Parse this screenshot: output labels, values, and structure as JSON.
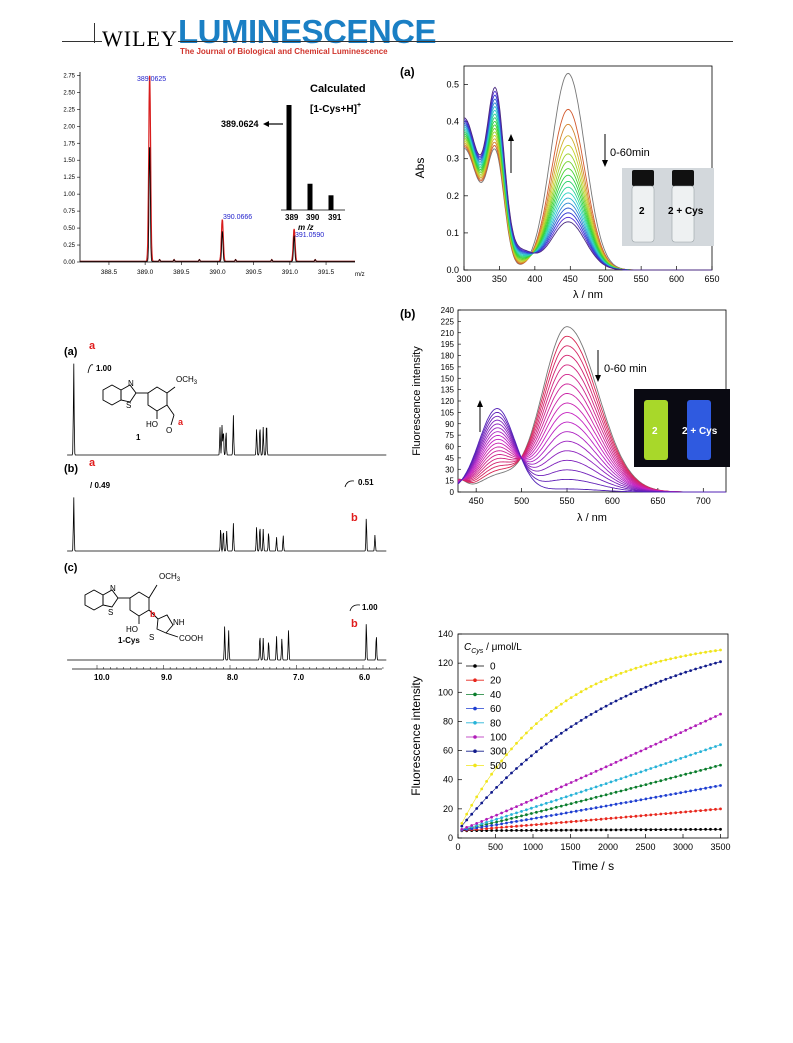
{
  "header": {
    "publisher": "WILEY",
    "journal": "LUMINESCENCE",
    "journal_subtitle": "The Journal of Biological and Chemical Luminescence"
  },
  "ms_panel": {
    "peak_labels": [
      "389.0625",
      "390.0666",
      "391.0590"
    ],
    "calc_title": "Calculated",
    "calc_ion": "[1-Cys+H]",
    "calc_ion_sup": "+",
    "calc_value": "389.0624",
    "calc_xlabel": "m /z",
    "calc_ticks": [
      "389",
      "390",
      "391"
    ],
    "x_unit": "m/z"
  },
  "abs_panel": {
    "label": "(a)",
    "time_label": "0-60min",
    "vial1": "2",
    "vial2": "2 + Cys"
  },
  "fl_panel": {
    "label": "(b)",
    "time_label": "0-60 min",
    "vial1": "2",
    "vial2": "2 + Cys"
  },
  "nmr_panel": {
    "a_label": "(a)",
    "b_label": "(b)",
    "c_label": "(c)",
    "peak_a": "a",
    "peak_b": "b",
    "int_a1": "1.00",
    "int_b_a": "0.49",
    "int_b_b": "0.51",
    "int_c": "1.00",
    "och3": "OCH",
    "och3_sub": "3",
    "ho": "HO",
    "nh": "NH",
    "cooh": "COOH",
    "o": "O",
    "n": "N",
    "s": "S",
    "compound1": "1",
    "compound1cys": "1-Cys",
    "x_ticks": [
      "10.0",
      "9.0",
      "8.0",
      "7.0",
      "6.0"
    ]
  },
  "chart_data": [
    {
      "type": "bar",
      "title": "",
      "xlabel": "m/z",
      "ylabel": "",
      "xlim": [
        388.1,
        391.9
      ],
      "ylim": [
        0,
        2.8
      ],
      "x_ticks": [
        388.5,
        389.0,
        389.5,
        390.0,
        390.5,
        391.0,
        391.5
      ],
      "y_ticks": [
        0.0,
        0.25,
        0.5,
        0.75,
        1.0,
        1.25,
        1.5,
        1.75,
        2.0,
        2.25,
        2.5,
        2.75
      ],
      "series": [
        {
          "values": [
            {
              "x": 389.0625,
              "y": 2.78
            },
            {
              "x": 390.0666,
              "y": 0.62
            },
            {
              "x": 391.059,
              "y": 0.48
            }
          ]
        },
        {
          "values": [
            {
              "x": 389.0625,
              "y": 1.75
            },
            {
              "x": 390.0666,
              "y": 0.45
            },
            {
              "x": 391.059,
              "y": 0.38
            }
          ]
        }
      ],
      "inset": {
        "x": [
          389,
          390,
          391
        ],
        "values": [
          1.0,
          0.25,
          0.14
        ]
      }
    },
    {
      "type": "line",
      "title": "",
      "xlabel": "λ / nm",
      "ylabel": "Abs",
      "xlim": [
        300,
        650
      ],
      "ylim": [
        0,
        0.55
      ],
      "x_ticks": [
        300,
        350,
        400,
        450,
        500,
        550,
        600,
        650
      ],
      "y_ticks": [
        0.0,
        0.1,
        0.2,
        0.3,
        0.4,
        0.5
      ],
      "curve_count": 18,
      "final": {
        "peak1_x": 345,
        "peak1_y": 0.44,
        "peak2_y": 0.13
      },
      "initial": {
        "peak1_y": 0.34,
        "peak2_x": 445,
        "peak2_y": 0.53
      },
      "t0_color": "#777777",
      "tend_color": "#4a2a80"
    },
    {
      "type": "line",
      "title": "",
      "xlabel": "λ / nm",
      "ylabel": "Fluorescence intensity",
      "xlim": [
        430,
        725
      ],
      "ylim": [
        0,
        240
      ],
      "x_ticks": [
        450,
        500,
        550,
        600,
        650,
        700
      ],
      "y_ticks": [
        0,
        15,
        30,
        45,
        60,
        75,
        90,
        105,
        120,
        135,
        150,
        165,
        180,
        195,
        210,
        225,
        240
      ],
      "curve_count": 18,
      "initial": {
        "peak_x": 550,
        "peak_y": 218
      },
      "final": {
        "peak_x": 473,
        "peak_y": 110
      },
      "isosbestic": {
        "x": 507,
        "y": 78
      }
    },
    {
      "type": "scatter",
      "title": "",
      "xlabel": "Time / s",
      "ylabel": "Fluorescence intensity",
      "xlim": [
        0,
        3600
      ],
      "ylim": [
        0,
        140
      ],
      "x_ticks": [
        0,
        500,
        1000,
        1500,
        2000,
        2500,
        3000,
        3500
      ],
      "y_ticks": [
        0,
        20,
        40,
        60,
        80,
        100,
        120,
        140
      ],
      "legend_title": "C",
      "legend_title_sub": "Cys",
      "legend_title_unit": " / μmol/L",
      "legend_position": "top-left",
      "series": [
        {
          "name": "0",
          "color": "#000000",
          "start": 5,
          "end": 6,
          "shape": "lin"
        },
        {
          "name": "20",
          "color": "#e8261c",
          "start": 5,
          "end": 20,
          "shape": "lin"
        },
        {
          "name": "40",
          "color": "#0a7d2c",
          "start": 5,
          "end": 50,
          "shape": "lin"
        },
        {
          "name": "60",
          "color": "#1f3fd1",
          "start": 5,
          "end": 36,
          "shape": "lin"
        },
        {
          "name": "80",
          "color": "#27b3d8",
          "start": 5,
          "end": 64,
          "shape": "lin"
        },
        {
          "name": "100",
          "color": "#b01cb8",
          "start": 5,
          "end": 85,
          "shape": "lin"
        },
        {
          "name": "300",
          "color": "#101a8a",
          "start": 5,
          "end": 121,
          "shape": "exp"
        },
        {
          "name": "500",
          "color": "#f0e51a",
          "start": 5,
          "end": 129,
          "shape": "exp"
        }
      ]
    }
  ]
}
